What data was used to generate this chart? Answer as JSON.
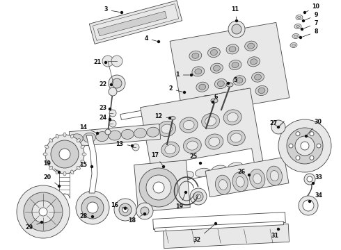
{
  "bg_color": "#ffffff",
  "fig_width": 4.9,
  "fig_height": 3.6,
  "dpi": 100,
  "line_color": "#444444",
  "text_color": "#111111",
  "font_size": 5.8,
  "label_font_size": 5.8
}
